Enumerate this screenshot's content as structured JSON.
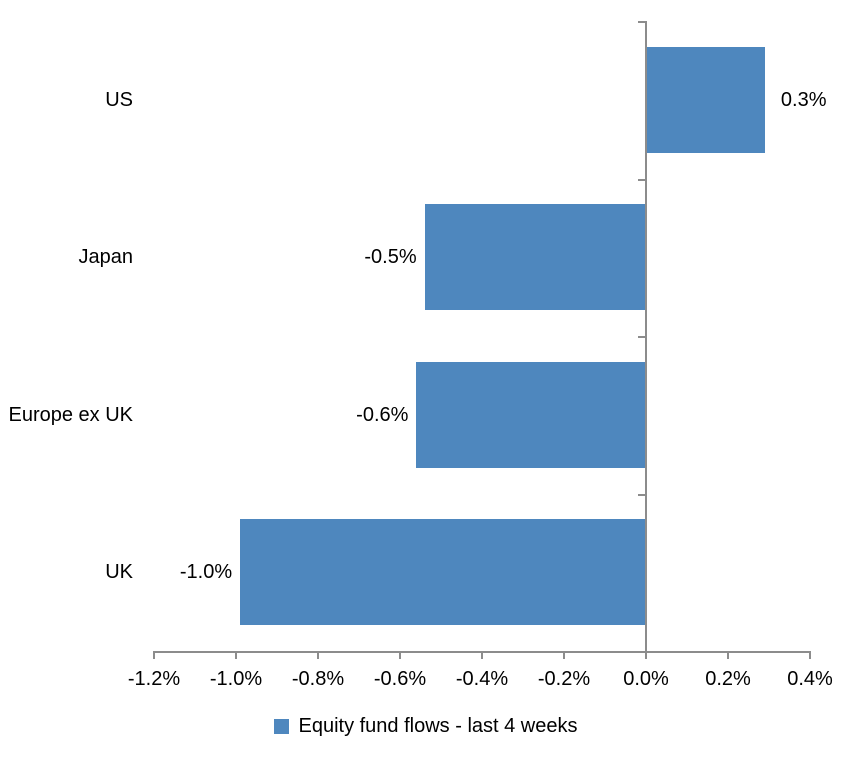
{
  "chart_data": {
    "type": "bar",
    "orientation": "horizontal",
    "categories": [
      "US",
      "Japan",
      "Europe ex UK",
      "UK"
    ],
    "values": [
      0.3,
      -0.5,
      -0.6,
      -1.0
    ],
    "data_labels": [
      "0.3%",
      "-0.5%",
      "-0.6%",
      "-1.0%"
    ],
    "bar_plot_values": [
      0.29,
      -0.54,
      -0.56,
      -0.99
    ],
    "unit": "%",
    "xlim": [
      -1.2,
      0.4
    ],
    "x_tick_step": 0.2,
    "x_tick_labels": [
      "-1.2%",
      "-1.0%",
      "-0.8%",
      "-0.6%",
      "-0.4%",
      "-0.2%",
      "0.0%",
      "0.2%",
      "0.4%"
    ],
    "grid": "off",
    "legend": {
      "label": "Equity fund flows - last 4 weeks",
      "position": "bottom",
      "marker": "square"
    },
    "colors": {
      "bar": "#4E87BE",
      "axis": "#8C8C8C",
      "text": "#000000",
      "background": "#FFFFFF"
    }
  }
}
